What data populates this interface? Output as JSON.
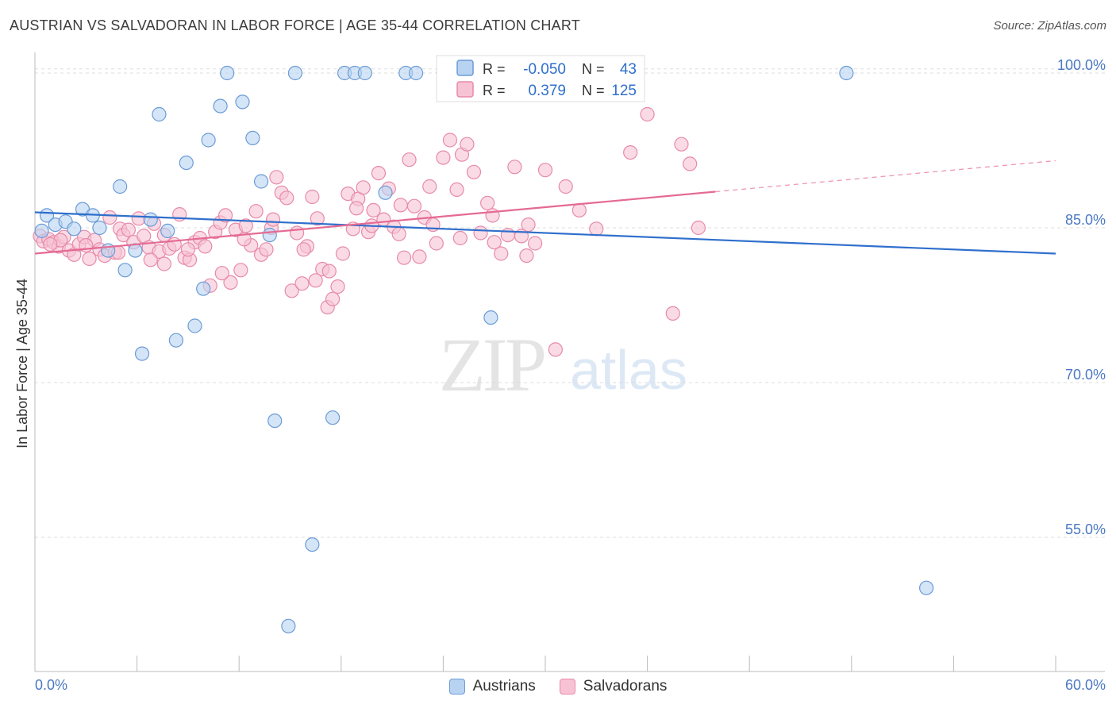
{
  "header": {
    "title": "AUSTRIAN VS SALVADORAN IN LABOR FORCE | AGE 35-44 CORRELATION CHART",
    "source": "Source: ZipAtlas.com"
  },
  "watermark": {
    "zip": "ZIP",
    "atlas": "atlas"
  },
  "stats": [
    {
      "r_label": "R =",
      "r_value": "-0.050",
      "n_label": "N =",
      "n_value": "43"
    },
    {
      "r_label": "R =",
      "r_value": "0.379",
      "n_label": "N =",
      "n_value": "125"
    }
  ],
  "chart_data": {
    "type": "scatter",
    "title": "AUSTRIAN VS SALVADORAN IN LABOR FORCE | AGE 35-44 CORRELATION CHART",
    "ylabel": "In Labor Force | Age 35-44",
    "xlabel": "",
    "xlim": [
      0,
      60
    ],
    "ylim": [
      42,
      102
    ],
    "x_tick_labels": [
      "0.0%",
      "60.0%"
    ],
    "y_ticks": [
      55,
      70,
      85,
      100
    ],
    "y_tick_labels": [
      "55.0%",
      "70.0%",
      "85.0%",
      "100.0%"
    ],
    "grid": true,
    "legend_position": "bottom",
    "colors": {
      "austrians_fill": "#b8d3f2",
      "austrians_stroke": "#6c9bd6",
      "austrians_line": "#2f6fcc",
      "salvadorans_fill": "#f7c3d4",
      "salvadorans_stroke": "#e78aa9",
      "salvadorans_line": "#e56a93",
      "axis_label": "#4a78c4"
    },
    "series": [
      {
        "name": "Austrians",
        "r": -0.05,
        "n": 43,
        "trend": {
          "x": [
            0,
            60
          ],
          "y": [
            86.5,
            82.5
          ]
        },
        "points": [
          [
            0.4,
            84.7
          ],
          [
            0.7,
            86.2
          ],
          [
            1.2,
            85.3
          ],
          [
            1.8,
            85.6
          ],
          [
            2.3,
            84.9
          ],
          [
            2.8,
            86.8
          ],
          [
            3.4,
            86.2
          ],
          [
            3.8,
            85.0
          ],
          [
            4.3,
            82.8
          ],
          [
            5.0,
            89.0
          ],
          [
            5.3,
            80.9
          ],
          [
            5.9,
            82.8
          ],
          [
            6.3,
            72.8
          ],
          [
            6.8,
            85.8
          ],
          [
            7.3,
            96.0
          ],
          [
            7.8,
            84.7
          ],
          [
            8.3,
            74.1
          ],
          [
            8.9,
            91.3
          ],
          [
            9.4,
            75.5
          ],
          [
            9.9,
            79.1
          ],
          [
            10.2,
            93.5
          ],
          [
            10.9,
            96.8
          ],
          [
            11.3,
            100.0
          ],
          [
            12.2,
            97.2
          ],
          [
            12.8,
            93.7
          ],
          [
            13.3,
            89.5
          ],
          [
            13.8,
            84.3
          ],
          [
            14.1,
            66.3
          ],
          [
            14.9,
            46.4
          ],
          [
            15.3,
            100.0
          ],
          [
            16.3,
            54.3
          ],
          [
            17.5,
            66.6
          ],
          [
            18.2,
            100.0
          ],
          [
            18.8,
            100.0
          ],
          [
            19.4,
            100.0
          ],
          [
            20.6,
            88.4
          ],
          [
            21.8,
            100.0
          ],
          [
            22.4,
            100.0
          ],
          [
            24.0,
            100.0
          ],
          [
            24.7,
            100.0
          ],
          [
            26.8,
            76.3
          ],
          [
            47.7,
            100.0
          ],
          [
            52.4,
            50.1
          ]
        ]
      },
      {
        "name": "Salvadorans",
        "r": 0.379,
        "n": 125,
        "trend": {
          "x": [
            0,
            40
          ],
          "y": [
            82.5,
            88.5
          ]
        },
        "trend_extension": {
          "x": [
            40,
            60
          ],
          "y": [
            88.5,
            91.5
          ]
        },
        "points": [
          [
            0.3,
            84.2
          ],
          [
            0.5,
            83.7
          ],
          [
            0.8,
            83.9
          ],
          [
            1.1,
            83.6
          ],
          [
            1.4,
            83.2
          ],
          [
            1.7,
            84.1
          ],
          [
            2.0,
            82.8
          ],
          [
            2.3,
            82.4
          ],
          [
            2.6,
            83.4
          ],
          [
            2.9,
            84.1
          ],
          [
            3.2,
            82.0
          ],
          [
            3.5,
            83.8
          ],
          [
            3.8,
            82.9
          ],
          [
            4.1,
            82.3
          ],
          [
            4.4,
            86.0
          ],
          [
            4.7,
            82.6
          ],
          [
            5.0,
            84.9
          ],
          [
            5.2,
            84.3
          ],
          [
            5.5,
            84.8
          ],
          [
            5.8,
            83.6
          ],
          [
            6.1,
            85.9
          ],
          [
            6.4,
            84.2
          ],
          [
            6.7,
            83.1
          ],
          [
            7.0,
            85.4
          ],
          [
            7.3,
            82.7
          ],
          [
            7.6,
            81.5
          ],
          [
            7.9,
            83.0
          ],
          [
            8.2,
            83.4
          ],
          [
            8.5,
            86.3
          ],
          [
            8.8,
            82.1
          ],
          [
            9.1,
            81.9
          ],
          [
            9.4,
            83.6
          ],
          [
            9.7,
            84.0
          ],
          [
            10.0,
            83.2
          ],
          [
            10.3,
            79.4
          ],
          [
            10.6,
            84.6
          ],
          [
            10.9,
            85.5
          ],
          [
            11.2,
            86.2
          ],
          [
            11.5,
            79.7
          ],
          [
            11.8,
            84.8
          ],
          [
            12.1,
            80.9
          ],
          [
            12.4,
            85.2
          ],
          [
            12.7,
            83.3
          ],
          [
            13.0,
            86.6
          ],
          [
            13.3,
            82.4
          ],
          [
            13.6,
            82.9
          ],
          [
            13.9,
            85.0
          ],
          [
            14.2,
            89.9
          ],
          [
            14.5,
            88.4
          ],
          [
            14.8,
            87.9
          ],
          [
            15.1,
            78.9
          ],
          [
            15.4,
            84.5
          ],
          [
            15.7,
            79.6
          ],
          [
            16.0,
            83.2
          ],
          [
            16.3,
            88.0
          ],
          [
            16.6,
            85.9
          ],
          [
            16.9,
            81.0
          ],
          [
            17.2,
            77.3
          ],
          [
            17.5,
            78.1
          ],
          [
            17.8,
            79.3
          ],
          [
            18.1,
            82.5
          ],
          [
            18.4,
            88.3
          ],
          [
            18.7,
            84.9
          ],
          [
            19.0,
            87.8
          ],
          [
            19.3,
            88.9
          ],
          [
            19.6,
            84.6
          ],
          [
            19.9,
            86.7
          ],
          [
            20.2,
            90.3
          ],
          [
            20.5,
            85.8
          ],
          [
            20.8,
            88.8
          ],
          [
            21.1,
            85.1
          ],
          [
            21.4,
            84.4
          ],
          [
            21.7,
            82.1
          ],
          [
            22.0,
            91.6
          ],
          [
            22.3,
            87.1
          ],
          [
            22.6,
            82.2
          ],
          [
            22.9,
            86.0
          ],
          [
            23.2,
            89.0
          ],
          [
            23.6,
            83.5
          ],
          [
            24.0,
            91.8
          ],
          [
            24.4,
            93.5
          ],
          [
            24.8,
            88.7
          ],
          [
            25.1,
            92.1
          ],
          [
            25.4,
            93.1
          ],
          [
            25.8,
            90.4
          ],
          [
            26.2,
            84.5
          ],
          [
            26.6,
            87.4
          ],
          [
            27.0,
            83.6
          ],
          [
            27.4,
            82.5
          ],
          [
            27.8,
            84.3
          ],
          [
            28.2,
            90.9
          ],
          [
            28.6,
            84.2
          ],
          [
            29.0,
            85.3
          ],
          [
            29.4,
            83.5
          ],
          [
            30.0,
            90.6
          ],
          [
            30.6,
            73.2
          ],
          [
            31.2,
            89.0
          ],
          [
            32.0,
            86.7
          ],
          [
            33.0,
            84.9
          ],
          [
            35.0,
            92.3
          ],
          [
            36.0,
            96.0
          ],
          [
            37.5,
            76.7
          ],
          [
            38.0,
            93.1
          ],
          [
            38.5,
            91.2
          ],
          [
            39.0,
            85.0
          ],
          [
            6.8,
            81.9
          ],
          [
            7.6,
            84.3
          ],
          [
            9.0,
            82.9
          ],
          [
            11.0,
            80.6
          ],
          [
            12.3,
            83.9
          ],
          [
            14.0,
            85.8
          ],
          [
            15.8,
            82.9
          ],
          [
            16.5,
            79.9
          ],
          [
            17.3,
            80.8
          ],
          [
            18.9,
            86.9
          ],
          [
            19.8,
            85.2
          ],
          [
            21.5,
            87.2
          ],
          [
            23.4,
            85.3
          ],
          [
            25.0,
            84.0
          ],
          [
            26.9,
            86.2
          ],
          [
            28.9,
            82.3
          ],
          [
            4.9,
            82.6
          ],
          [
            3.0,
            83.3
          ],
          [
            1.5,
            83.8
          ],
          [
            0.9,
            83.4
          ]
        ]
      }
    ]
  },
  "legend": {
    "items": [
      {
        "label": "Austrians"
      },
      {
        "label": "Salvadorans"
      }
    ]
  }
}
